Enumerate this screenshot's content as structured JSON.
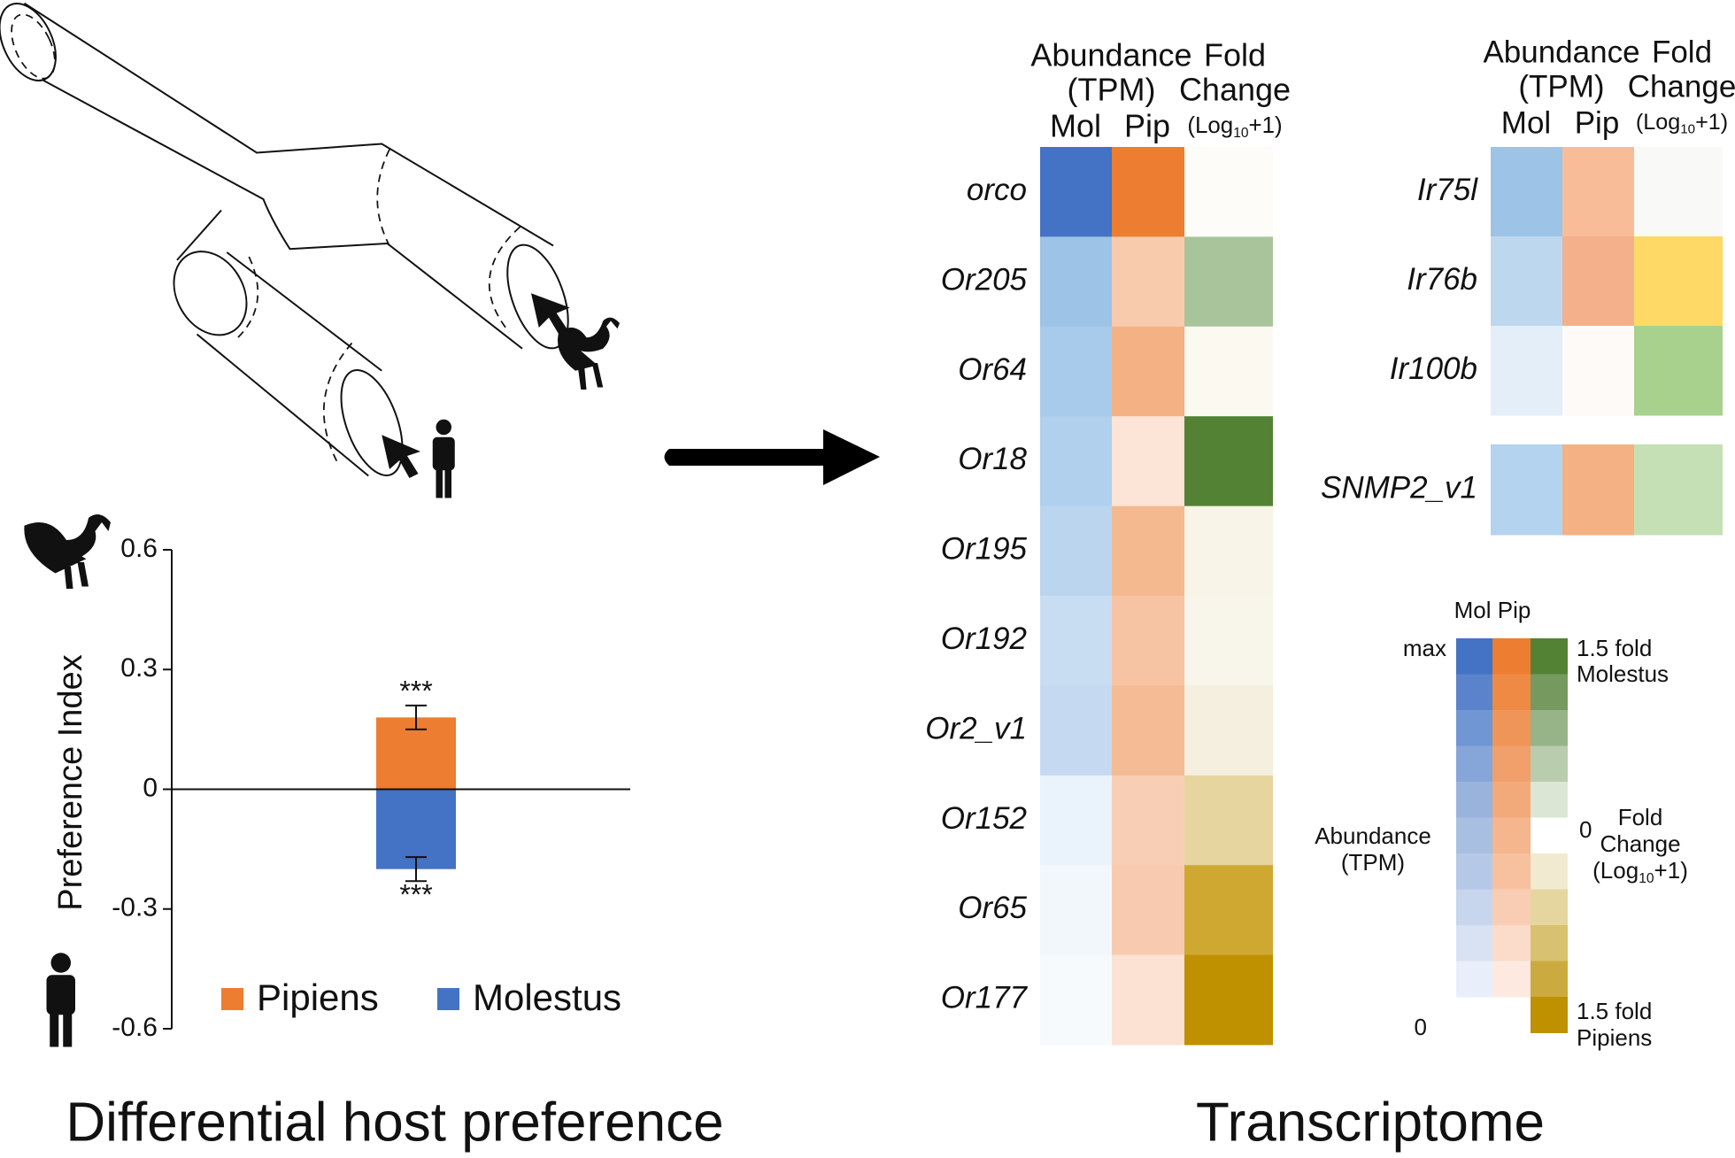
{
  "chart_data": [
    {
      "type": "bar",
      "title": "Differential host preference",
      "ylabel": "Preference Index",
      "ylim": [
        -0.6,
        0.6
      ],
      "yticks": [
        0.6,
        0.3,
        0,
        -0.3,
        -0.6
      ],
      "series": [
        {
          "name": "Pipiens",
          "color": "#ed7d31",
          "values": [
            0.18
          ],
          "errors": [
            0.03
          ],
          "annotations": [
            "***"
          ]
        },
        {
          "name": "Molestus",
          "color": "#4472c4",
          "values": [
            -0.2
          ],
          "errors": [
            0.03
          ],
          "annotations": [
            "***"
          ]
        }
      ]
    }
  ],
  "transcriptome": {
    "title": "Transcriptome",
    "header": {
      "abundance": "Abundance",
      "tpm": "(TPM)",
      "mol": "Mol",
      "pip": "Pip",
      "fold": "Fold",
      "change": "Change",
      "log": [
        "(Log",
        "10",
        "+1)"
      ]
    },
    "panels": [
      {
        "rows": [
          {
            "label": "orco",
            "colors": [
              "#4472c4",
              "#ed7d31",
              "#fdfcf8"
            ]
          },
          {
            "label": "Or205",
            "colors": [
              "#9dc3e6",
              "#f8cbad",
              "#a9c49a"
            ]
          },
          {
            "label": "Or64",
            "colors": [
              "#a9cbeb",
              "#f4b183",
              "#fbf9f0"
            ]
          },
          {
            "label": "Or18",
            "colors": [
              "#b0d0ee",
              "#fce4d6",
              "#548235"
            ]
          },
          {
            "label": "Or195",
            "colors": [
              "#bcd5ee",
              "#f5b98f",
              "#f8f5e8"
            ]
          },
          {
            "label": "Or192",
            "colors": [
              "#c9ddf2",
              "#f7c4a3",
              "#f8f6ea"
            ]
          },
          {
            "label": "Or2_v1",
            "colors": [
              "#c5daf0",
              "#f5bb95",
              "#f4efdf"
            ]
          },
          {
            "label": "Or152",
            "colors": [
              "#eaf2fb",
              "#f8cfb5",
              "#e6d59f"
            ]
          },
          {
            "label": "Or65",
            "colors": [
              "#f2f7fc",
              "#f8cbb0",
              "#cfa832"
            ]
          },
          {
            "label": "Or177",
            "colors": [
              "#f7fafd",
              "#fbe2d3",
              "#bf9000"
            ]
          }
        ]
      },
      {
        "rows": [
          {
            "label": "Ir75l",
            "colors": [
              "#9dc3e6",
              "#f8bd98",
              "#f9faf7"
            ]
          },
          {
            "label": "Ir76b",
            "colors": [
              "#bdd7ee",
              "#f4b08a",
              "#ffd966"
            ]
          },
          {
            "label": "Ir100b",
            "colors": [
              "#e3eef8",
              "#fefaf8",
              "#a9d18e"
            ]
          }
        ]
      },
      {
        "rows": [
          {
            "label": "SNMP2_v1",
            "colors": [
              "#b4d3ee",
              "#f4b183",
              "#c5e0b4"
            ]
          }
        ]
      }
    ],
    "legend": {
      "columns": "Mol Pip",
      "max": "max",
      "zero": "0",
      "mid": "0",
      "top": [
        "1.5 fold",
        "Molestus"
      ],
      "bottom": [
        "1.5 fold",
        "Pipiens"
      ],
      "abundance": [
        "Abundance",
        "(TPM)"
      ],
      "fc": [
        "Fold",
        "Change"
      ],
      "mol_colors": [
        "#4472c4",
        "#5a83cb",
        "#7096d3",
        "#86a6d9",
        "#9ab3dd",
        "#a9bfe2",
        "#b6c8e7",
        "#c7d5ed",
        "#d8e2f3",
        "#e9effa"
      ],
      "pip_colors": [
        "#ed7d31",
        "#ef8a45",
        "#f09558",
        "#f2a06b",
        "#f3aa7b",
        "#f5b58d",
        "#f7c1a0",
        "#f9cdb4",
        "#fbdbc9",
        "#fde9df"
      ],
      "fc_colors": [
        "#548235",
        "#76995f",
        "#97b388",
        "#b9ccad",
        "#dce6d5",
        "#ffffff",
        "#f2ead0",
        "#e5d6a0",
        "#d8c170",
        "#cbab3f",
        "#bf9000"
      ]
    }
  }
}
